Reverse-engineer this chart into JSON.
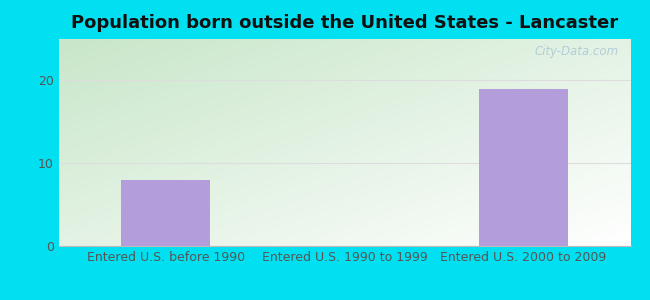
{
  "title": "Population born outside the United States - Lancaster",
  "categories": [
    "Entered U.S. before 1990",
    "Entered U.S. 1990 to 1999",
    "Entered U.S. 2000 to 2009"
  ],
  "values": [
    8,
    0,
    19
  ],
  "bar_color": "#b39ddb",
  "bar_width": 0.5,
  "ylim": [
    0,
    25
  ],
  "yticks": [
    0,
    10,
    20
  ],
  "bg_outer": "#00e0f0",
  "title_fontsize": 13,
  "tick_fontsize": 9,
  "watermark": "City-Data.com",
  "grid_color": "#dddddd",
  "grid_lw": 0.8
}
